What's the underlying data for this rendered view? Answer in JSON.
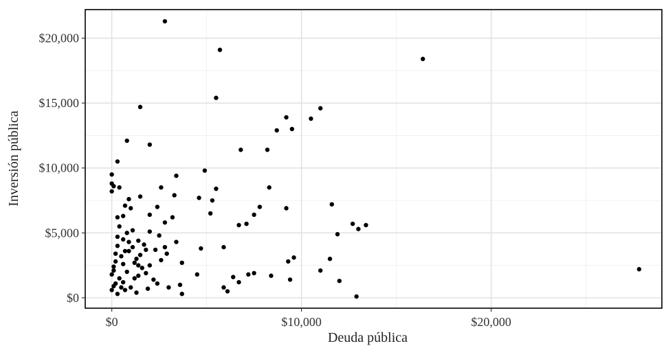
{
  "chart_data": {
    "type": "scatter",
    "title": "",
    "xlabel": "Deuda pública",
    "ylabel": "Inversión pública",
    "xlim": [
      -1400,
      29000
    ],
    "ylim": [
      -800,
      22200
    ],
    "x_ticks": [
      0,
      10000,
      20000
    ],
    "x_tick_labels": [
      "$0",
      "$10,000",
      "$20,000"
    ],
    "y_ticks": [
      0,
      5000,
      10000,
      15000,
      20000
    ],
    "y_tick_labels": [
      "$0",
      "$5,000",
      "$10,000",
      "$15,000",
      "$20,000"
    ],
    "grid": true,
    "legend": "none",
    "point_color": "#000000",
    "points": [
      [
        2800,
        21300
      ],
      [
        5700,
        19100
      ],
      [
        16400,
        18400
      ],
      [
        5500,
        15400
      ],
      [
        1500,
        14700
      ],
      [
        11000,
        14600
      ],
      [
        9200,
        13900
      ],
      [
        10500,
        13800
      ],
      [
        8700,
        12900
      ],
      [
        9500,
        13000
      ],
      [
        800,
        12100
      ],
      [
        2000,
        11800
      ],
      [
        6800,
        11400
      ],
      [
        8200,
        11400
      ],
      [
        300,
        10500
      ],
      [
        4900,
        9800
      ],
      [
        0,
        9500
      ],
      [
        3400,
        9400
      ],
      [
        0,
        8800
      ],
      [
        100,
        8600
      ],
      [
        0,
        8200
      ],
      [
        400,
        8500
      ],
      [
        2600,
        8500
      ],
      [
        5500,
        8400
      ],
      [
        8300,
        8500
      ],
      [
        3300,
        7900
      ],
      [
        1500,
        7800
      ],
      [
        4600,
        7700
      ],
      [
        900,
        7600
      ],
      [
        5300,
        7500
      ],
      [
        11600,
        7200
      ],
      [
        7800,
        7000
      ],
      [
        2400,
        7000
      ],
      [
        700,
        7100
      ],
      [
        1000,
        6900
      ],
      [
        9200,
        6900
      ],
      [
        5200,
        6500
      ],
      [
        7500,
        6400
      ],
      [
        2000,
        6400
      ],
      [
        3200,
        6200
      ],
      [
        300,
        6200
      ],
      [
        600,
        6300
      ],
      [
        7100,
        5700
      ],
      [
        6700,
        5600
      ],
      [
        2800,
        5800
      ],
      [
        12700,
        5700
      ],
      [
        13400,
        5600
      ],
      [
        13000,
        5300
      ],
      [
        1100,
        5200
      ],
      [
        2000,
        5100
      ],
      [
        11900,
        4900
      ],
      [
        2500,
        4800
      ],
      [
        300,
        4700
      ],
      [
        600,
        4500
      ],
      [
        1400,
        4400
      ],
      [
        3400,
        4300
      ],
      [
        5900,
        3900
      ],
      [
        4700,
        3800
      ],
      [
        2800,
        3900
      ],
      [
        1800,
        3700
      ],
      [
        900,
        3600
      ],
      [
        200,
        3400
      ],
      [
        2900,
        3400
      ],
      [
        9600,
        3100
      ],
      [
        11500,
        3000
      ],
      [
        9300,
        2800
      ],
      [
        3700,
        2700
      ],
      [
        1200,
        2700
      ],
      [
        2000,
        2500
      ],
      [
        100,
        2400
      ],
      [
        27800,
        2200
      ],
      [
        11000,
        2100
      ],
      [
        7500,
        1900
      ],
      [
        7200,
        1800
      ],
      [
        8400,
        1700
      ],
      [
        4500,
        1800
      ],
      [
        6400,
        1600
      ],
      [
        1400,
        1700
      ],
      [
        9400,
        1400
      ],
      [
        6700,
        1200
      ],
      [
        12000,
        1300
      ],
      [
        600,
        1200
      ],
      [
        2400,
        1100
      ],
      [
        3600,
        1000
      ],
      [
        5900,
        800
      ],
      [
        3000,
        800
      ],
      [
        1900,
        700
      ],
      [
        6100,
        500
      ],
      [
        1300,
        400
      ],
      [
        3700,
        300
      ],
      [
        12900,
        100
      ],
      [
        300,
        300
      ],
      [
        700,
        600
      ],
      [
        100,
        900
      ],
      [
        400,
        1500
      ],
      [
        800,
        2000
      ],
      [
        200,
        2800
      ],
      [
        500,
        3200
      ],
      [
        1100,
        3900
      ],
      [
        1600,
        2300
      ],
      [
        2200,
        1400
      ],
      [
        1000,
        800
      ],
      [
        600,
        2600
      ],
      [
        300,
        4000
      ],
      [
        1300,
        3000
      ],
      [
        1800,
        1900
      ],
      [
        2600,
        2900
      ],
      [
        400,
        5500
      ],
      [
        900,
        4300
      ],
      [
        1500,
        3300
      ],
      [
        0,
        1800
      ],
      [
        200,
        1100
      ],
      [
        700,
        3600
      ],
      [
        1200,
        1500
      ],
      [
        1700,
        4100
      ],
      [
        2300,
        3700
      ],
      [
        500,
        800
      ],
      [
        100,
        2100
      ],
      [
        0,
        600
      ],
      [
        800,
        5000
      ],
      [
        1400,
        2500
      ]
    ]
  }
}
